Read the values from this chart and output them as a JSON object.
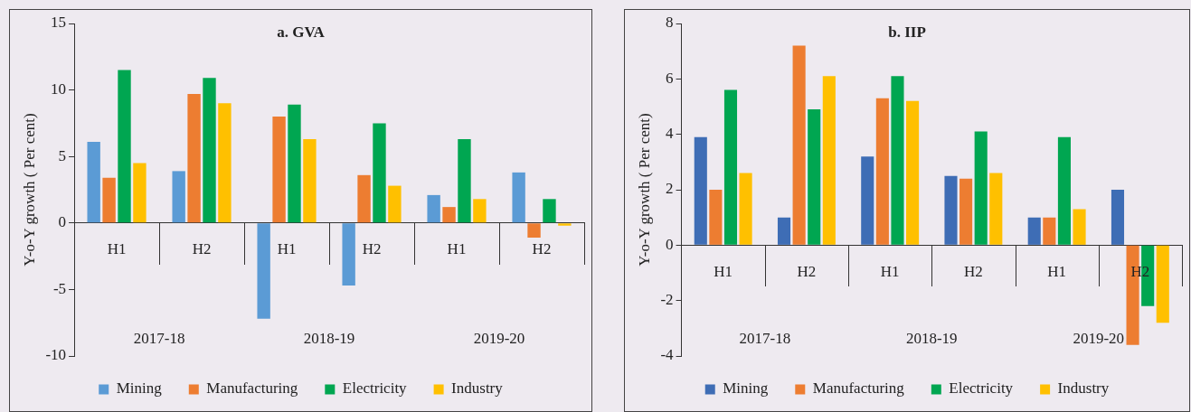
{
  "chart_data": [
    {
      "type": "bar",
      "title": "a. GVA",
      "ylabel": "Y-o-Y growth ( Per cent)",
      "categories": [
        "H1",
        "H2",
        "H1",
        "H2",
        "H1",
        "H2"
      ],
      "annotations": [
        "2017-18",
        "2018-19",
        "2019-20"
      ],
      "series": [
        {
          "name": "Mining",
          "color": "#5b9bd5",
          "values": [
            6.1,
            3.9,
            -7.2,
            -4.7,
            2.1,
            3.8
          ]
        },
        {
          "name": "Manufacturing",
          "color": "#ed7d31",
          "values": [
            3.4,
            9.7,
            8.0,
            3.6,
            1.2,
            -1.1
          ]
        },
        {
          "name": "Electricity",
          "color": "#00a651",
          "values": [
            11.5,
            10.9,
            8.9,
            7.5,
            6.3,
            1.8
          ]
        },
        {
          "name": "Industry",
          "color": "#ffc000",
          "values": [
            4.5,
            9.0,
            6.3,
            2.8,
            1.8,
            -0.2
          ]
        }
      ],
      "ylim": [
        -10,
        15
      ],
      "yticks": [
        -10,
        -5,
        0,
        5,
        10,
        15
      ],
      "grid": false,
      "legend": "bottom"
    },
    {
      "type": "bar",
      "title": "b. IIP",
      "ylabel": "Y-o-Y growth ( Per cent)",
      "categories": [
        "H1",
        "H2",
        "H1",
        "H2",
        "H1",
        "H2"
      ],
      "annotations": [
        "2017-18",
        "2018-19",
        "2019-20"
      ],
      "series": [
        {
          "name": "Mining",
          "color": "#3e6db5",
          "values": [
            3.9,
            1.0,
            3.2,
            2.5,
            1.0,
            2.0
          ]
        },
        {
          "name": "Manufacturing",
          "color": "#ed7d31",
          "values": [
            2.0,
            7.2,
            5.3,
            2.4,
            1.0,
            -3.6
          ]
        },
        {
          "name": "Electricity",
          "color": "#00a651",
          "values": [
            5.6,
            4.9,
            6.1,
            4.1,
            3.9,
            -2.2
          ]
        },
        {
          "name": "Industry",
          "color": "#ffc000",
          "values": [
            2.6,
            6.1,
            5.2,
            2.6,
            1.3,
            -2.8
          ]
        }
      ],
      "ylim": [
        -4,
        8
      ],
      "yticks": [
        -4,
        -2,
        0,
        2,
        4,
        6,
        8
      ],
      "grid": false,
      "legend": "bottom"
    }
  ]
}
